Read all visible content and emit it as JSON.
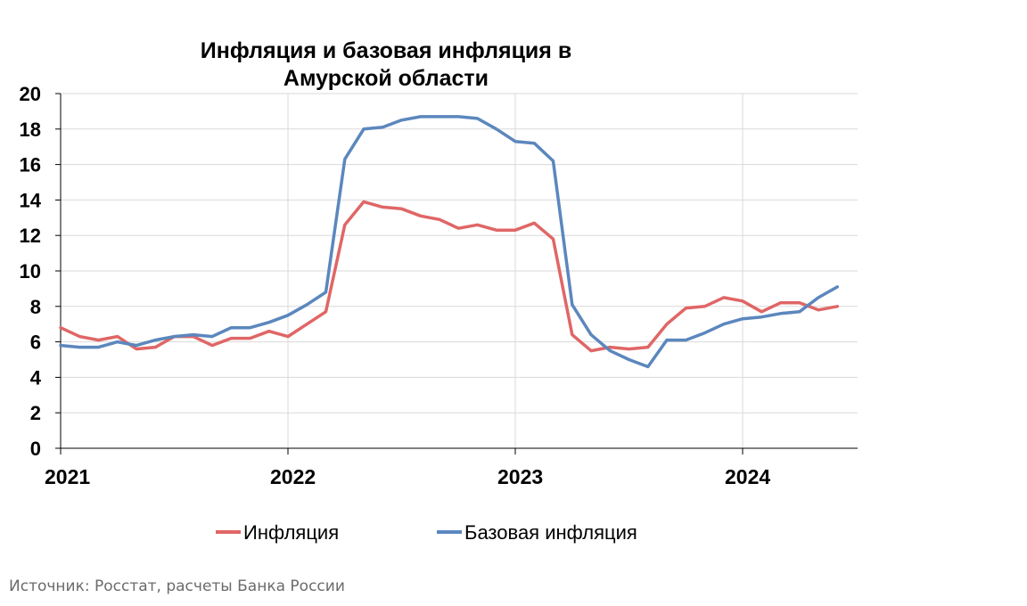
{
  "chart_data": {
    "type": "line",
    "title_lines": [
      "Инфляция и базовая инфляция в",
      "Амурской области"
    ],
    "xlabel": "",
    "ylabel": "",
    "ylim": [
      0,
      20
    ],
    "yticks": [
      "0",
      "2",
      "4",
      "6",
      "8",
      "10",
      "12",
      "14",
      "16",
      "18",
      "20"
    ],
    "xlim": [
      "2021-01",
      "2024-06"
    ],
    "xticks": [
      "2021",
      "2022",
      "2023",
      "2024"
    ],
    "grid": true,
    "legend_position": "bottom",
    "x": [
      "2021-01",
      "2021-02",
      "2021-03",
      "2021-04",
      "2021-05",
      "2021-06",
      "2021-07",
      "2021-08",
      "2021-09",
      "2021-10",
      "2021-11",
      "2021-12",
      "2022-01",
      "2022-02",
      "2022-03",
      "2022-04",
      "2022-05",
      "2022-06",
      "2022-07",
      "2022-08",
      "2022-09",
      "2022-10",
      "2022-11",
      "2022-12",
      "2023-01",
      "2023-02",
      "2023-03",
      "2023-04",
      "2023-05",
      "2023-06",
      "2023-07",
      "2023-08",
      "2023-09",
      "2023-10",
      "2023-11",
      "2023-12",
      "2024-01",
      "2024-02",
      "2024-03",
      "2024-04",
      "2024-05",
      "2024-06"
    ],
    "series": [
      {
        "name": "Инфляция",
        "color": "#e06666",
        "values": [
          6.8,
          6.3,
          6.1,
          6.3,
          5.6,
          5.7,
          6.3,
          6.3,
          5.8,
          6.2,
          6.2,
          6.6,
          6.3,
          7.0,
          7.7,
          12.6,
          13.9,
          13.6,
          13.5,
          13.1,
          12.9,
          12.4,
          12.6,
          12.3,
          12.3,
          12.7,
          11.8,
          6.4,
          5.5,
          5.7,
          5.6,
          5.7,
          7.0,
          7.9,
          8.0,
          8.5,
          8.3,
          7.7,
          8.2,
          8.2,
          7.8,
          8.0
        ]
      },
      {
        "name": "Базовая инфляция",
        "color": "#5b87bd",
        "values": [
          5.8,
          5.7,
          5.7,
          6.0,
          5.8,
          6.1,
          6.3,
          6.4,
          6.3,
          6.8,
          6.8,
          7.1,
          7.5,
          8.1,
          8.8,
          16.3,
          18.0,
          18.1,
          18.5,
          18.7,
          18.7,
          18.7,
          18.6,
          18.0,
          17.3,
          17.2,
          16.2,
          8.1,
          6.4,
          5.5,
          5.0,
          4.6,
          6.1,
          6.1,
          6.5,
          7.0,
          7.3,
          7.4,
          7.6,
          7.7,
          8.5,
          9.1
        ]
      }
    ]
  },
  "source_text": "Источник: Росстат, расчеты Банка России"
}
